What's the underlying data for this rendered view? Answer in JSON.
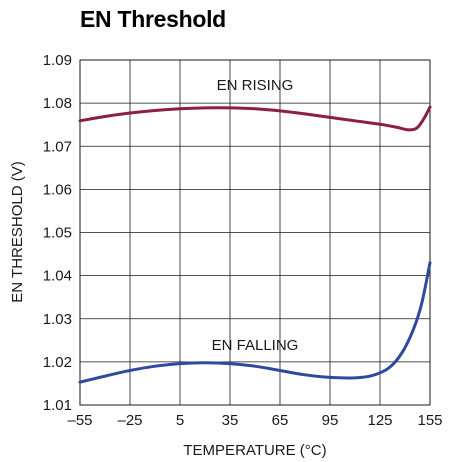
{
  "chart_data": {
    "type": "line",
    "title": "EN Threshold",
    "xlabel": "TEMPERATURE (°C)",
    "ylabel": "EN THRESHOLD (V)",
    "xlim": [
      -55,
      155
    ],
    "ylim": [
      1.01,
      1.09
    ],
    "x_ticks": [
      "–55",
      "–25",
      "5",
      "35",
      "65",
      "95",
      "125",
      "155"
    ],
    "x_tick_values": [
      -55,
      -25,
      5,
      35,
      65,
      95,
      125,
      155
    ],
    "y_ticks": [
      "1.01",
      "1.02",
      "1.03",
      "1.04",
      "1.05",
      "1.06",
      "1.07",
      "1.08",
      "1.09"
    ],
    "y_tick_values": [
      1.01,
      1.02,
      1.03,
      1.04,
      1.05,
      1.06,
      1.07,
      1.08,
      1.09
    ],
    "grid": true,
    "series": [
      {
        "name": "EN RISING",
        "color": "#8c1f3c",
        "points": [
          [
            -55,
            1.0759
          ],
          [
            -40,
            1.0769
          ],
          [
            -25,
            1.0777
          ],
          [
            -10,
            1.0783
          ],
          [
            5,
            1.0787
          ],
          [
            20,
            1.0789
          ],
          [
            35,
            1.0789
          ],
          [
            50,
            1.0787
          ],
          [
            65,
            1.0782
          ],
          [
            80,
            1.0775
          ],
          [
            95,
            1.0767
          ],
          [
            110,
            1.0759
          ],
          [
            125,
            1.0751
          ],
          [
            135,
            1.0744
          ],
          [
            142,
            1.0738
          ],
          [
            147,
            1.0742
          ],
          [
            151,
            1.0762
          ],
          [
            155,
            1.0791
          ]
        ]
      },
      {
        "name": "EN FALLING",
        "color": "#2e4a9c",
        "points": [
          [
            -55,
            1.0153
          ],
          [
            -40,
            1.0167
          ],
          [
            -25,
            1.018
          ],
          [
            -10,
            1.019
          ],
          [
            5,
            1.0196
          ],
          [
            20,
            1.0198
          ],
          [
            35,
            1.0196
          ],
          [
            50,
            1.019
          ],
          [
            65,
            1.018
          ],
          [
            80,
            1.017
          ],
          [
            95,
            1.0164
          ],
          [
            110,
            1.0163
          ],
          [
            120,
            1.0168
          ],
          [
            130,
            1.0185
          ],
          [
            138,
            1.022
          ],
          [
            145,
            1.0275
          ],
          [
            150,
            1.0335
          ],
          [
            155,
            1.043
          ]
        ]
      }
    ]
  }
}
